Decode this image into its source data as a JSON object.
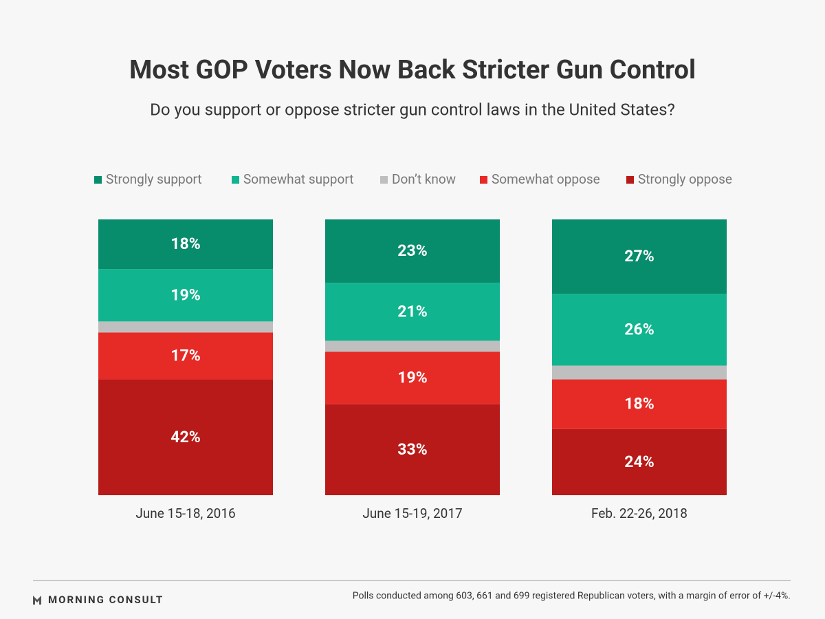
{
  "chart_data": {
    "type": "stacked_bar",
    "title": "Most GOP Voters Now Back Stricter Gun Control",
    "subtitle": "Do you support or oppose stricter gun control laws in the United States?",
    "categories": [
      "June 15-18, 2016",
      "June 15-19, 2017",
      "Feb. 22-26, 2018"
    ],
    "series": [
      {
        "name": "Strongly support",
        "color": "#078c6c",
        "values": [
          18,
          23,
          27
        ],
        "value_labels": [
          "18%",
          "23%",
          "27%"
        ]
      },
      {
        "name": "Somewhat support",
        "color": "#10b48f",
        "values": [
          19,
          21,
          26
        ],
        "value_labels": [
          "19%",
          "21%",
          "26%"
        ]
      },
      {
        "name": "Don’t know",
        "color": "#bfbfbf",
        "values": [
          4,
          4,
          5
        ],
        "value_labels": [
          null,
          null,
          null
        ]
      },
      {
        "name": "Somewhat oppose",
        "color": "#e62a26",
        "values": [
          17,
          19,
          18
        ],
        "value_labels": [
          "17%",
          "19%",
          "18%"
        ]
      },
      {
        "name": "Strongly oppose",
        "color": "#b71a18",
        "values": [
          42,
          33,
          24
        ],
        "value_labels": [
          "42%",
          "33%",
          "24%"
        ]
      }
    ],
    "ylim": [
      0,
      100
    ],
    "legend": "top",
    "brand": "MORNING CONSULT",
    "note": "Polls conducted among 603, 661 and 699 registered Republican voters, with a margin of error of +/-4%."
  }
}
